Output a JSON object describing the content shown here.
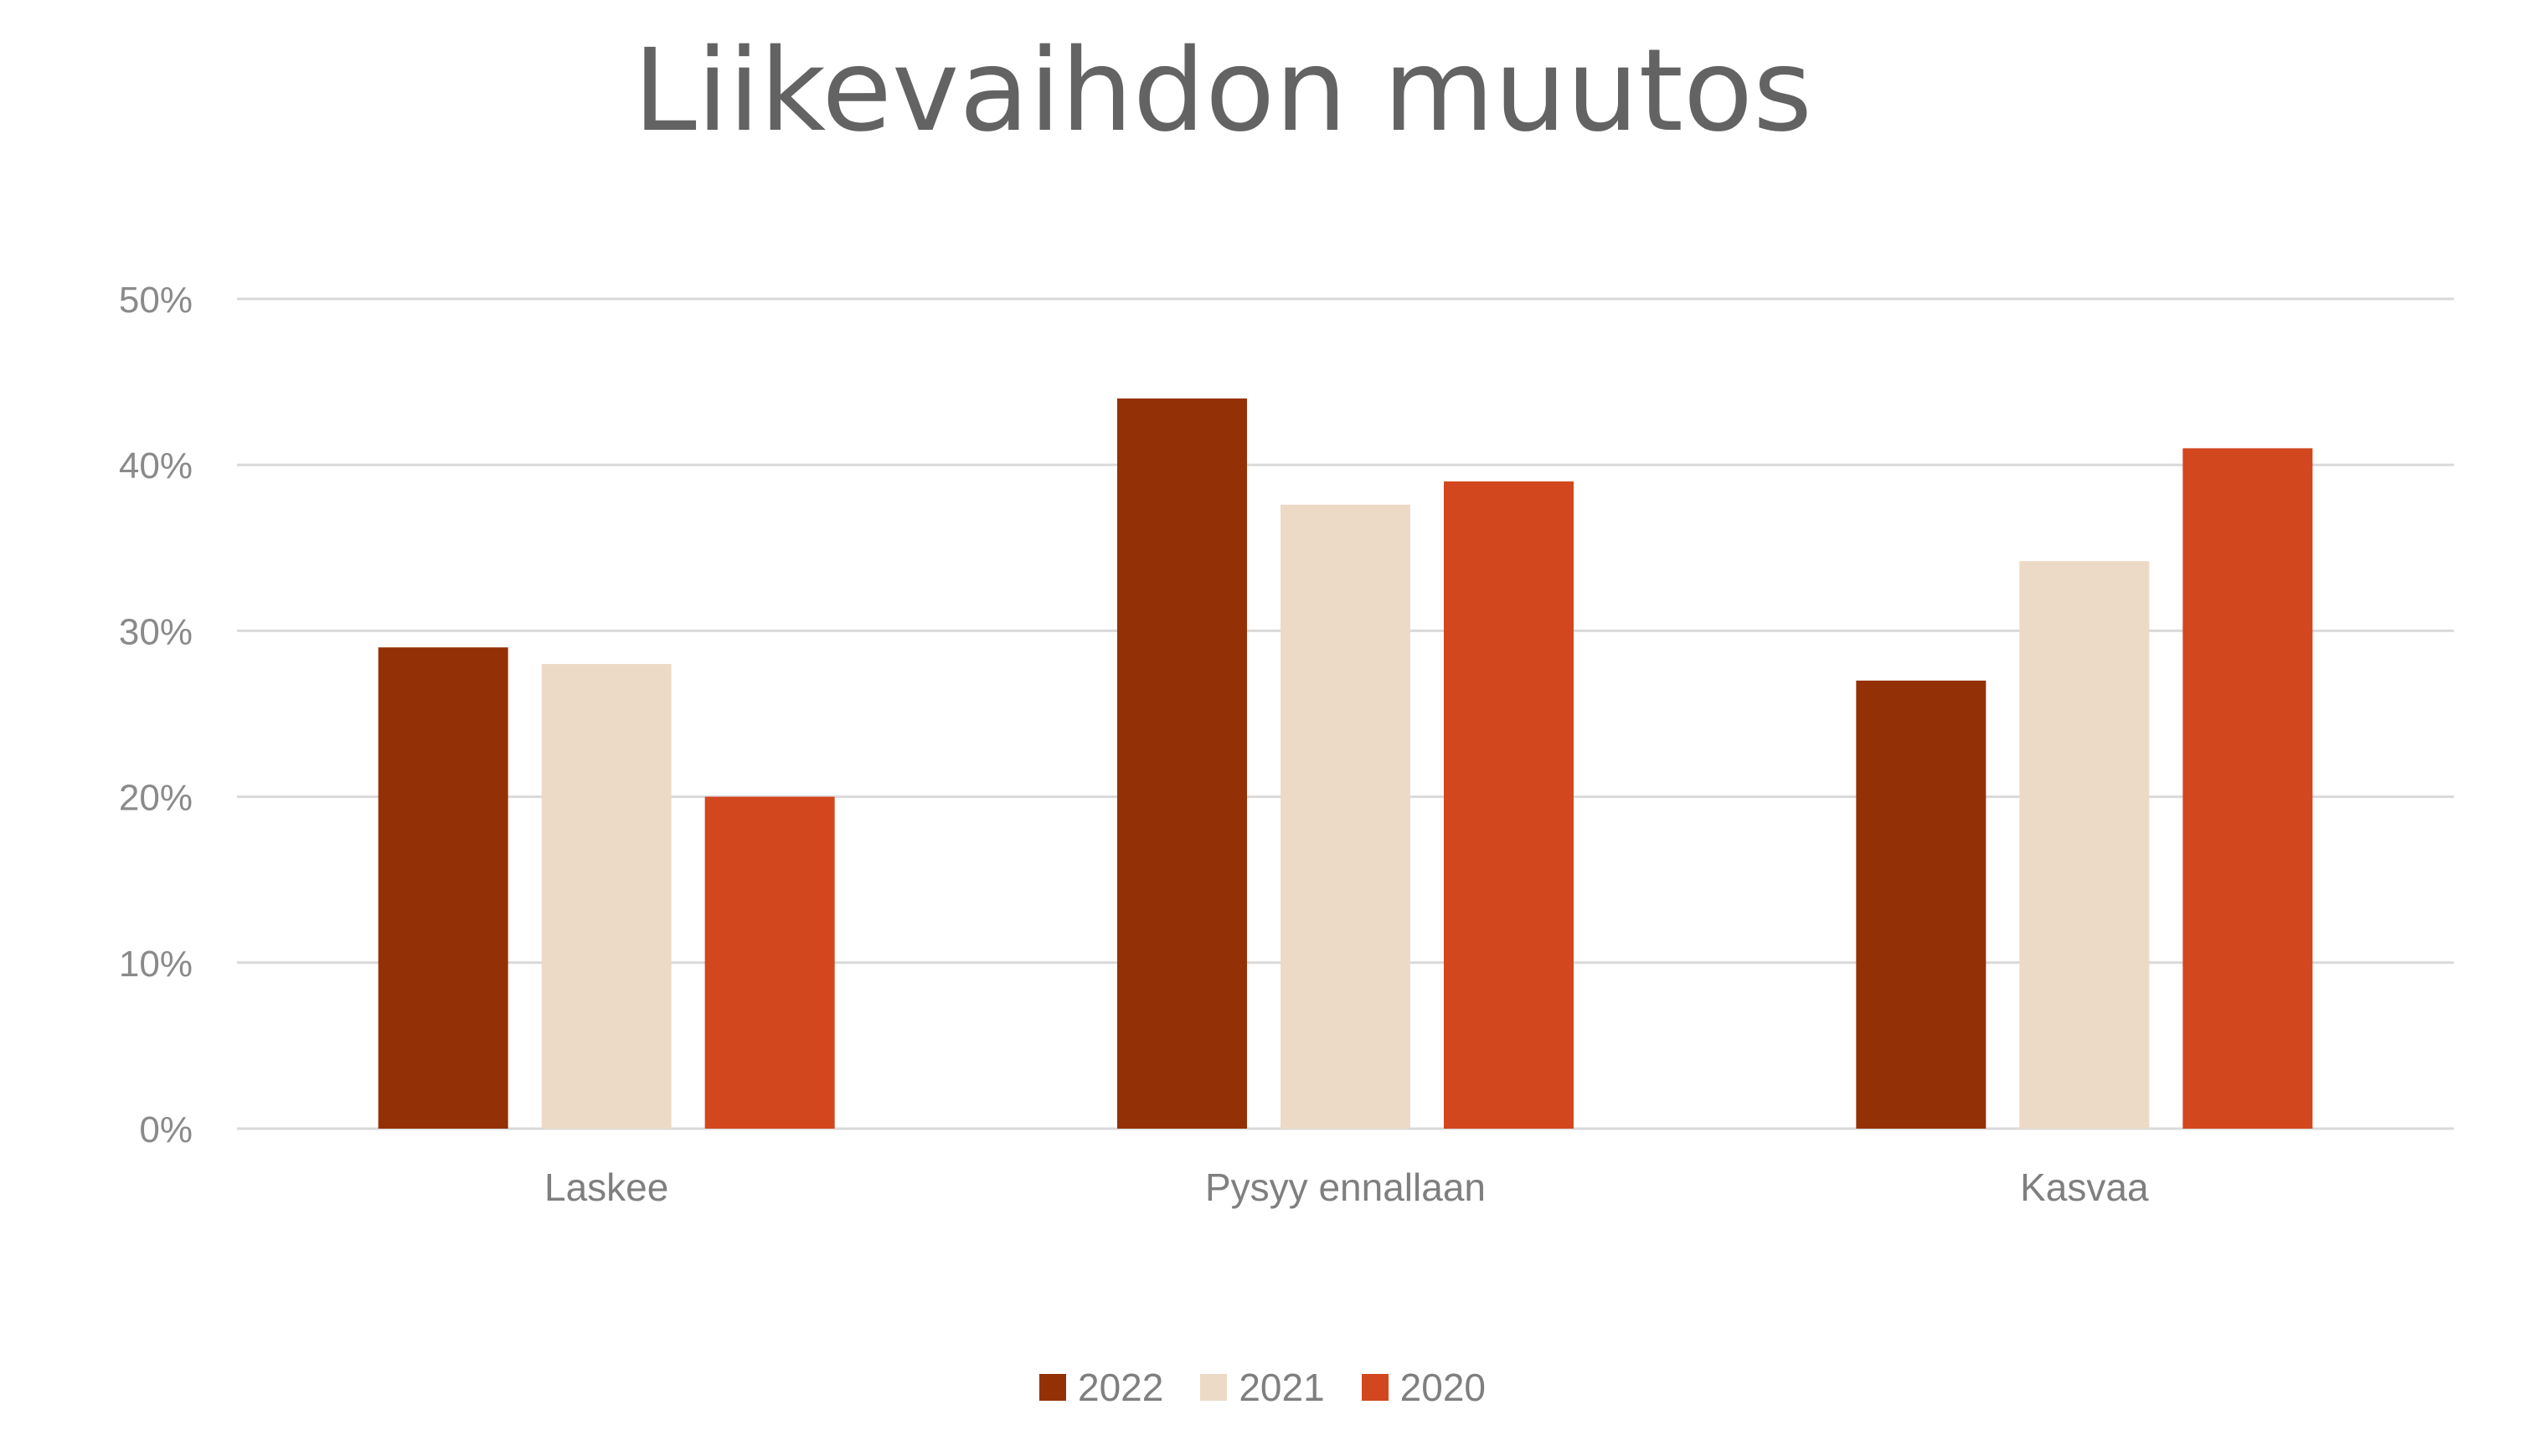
{
  "chart_data": {
    "type": "bar",
    "title": "Liikevaihdon muutos",
    "categories": [
      "Laskee",
      "Pysyy ennallaan",
      "Kasvaa"
    ],
    "series": [
      {
        "name": "2022",
        "color": "#943006",
        "values": [
          29,
          44,
          27
        ]
      },
      {
        "name": "2021",
        "color": "#EDDAC6",
        "values": [
          28,
          37.6,
          34.2
        ]
      },
      {
        "name": "2020",
        "color": "#D2471E",
        "values": [
          20,
          39,
          41
        ]
      }
    ],
    "ylim": [
      0,
      50
    ],
    "yticks": [
      0,
      10,
      20,
      30,
      40,
      50
    ],
    "ytick_labels": [
      "0%",
      "10%",
      "20%",
      "30%",
      "40%",
      "50%"
    ],
    "y_unit": "%",
    "grid": true,
    "legend_position": "bottom"
  }
}
